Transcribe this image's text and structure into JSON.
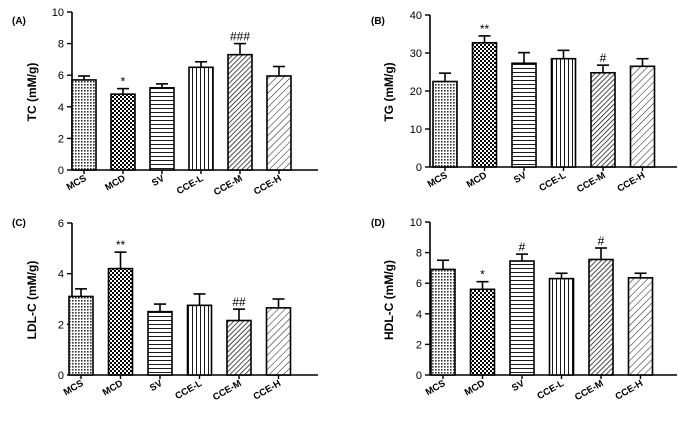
{
  "chart_data": [
    {
      "type": "bar",
      "panel": "(A)",
      "ylabel": "TC (mM/g)",
      "ylim": [
        0,
        10
      ],
      "yticks": [
        0,
        2,
        4,
        6,
        8,
        10
      ],
      "categories": [
        "MCS",
        "MCD",
        "SV",
        "CCE-L",
        "CCE-M",
        "CCE-H"
      ],
      "values": [
        5.7,
        4.8,
        5.2,
        6.5,
        7.3,
        5.95
      ],
      "errors": [
        0.25,
        0.35,
        0.25,
        0.35,
        0.7,
        0.6
      ],
      "significance": [
        "",
        "*",
        "",
        "",
        "###",
        ""
      ]
    },
    {
      "type": "bar",
      "panel": "(B)",
      "ylabel": "TG (mM/g)",
      "ylim": [
        0,
        40
      ],
      "yticks": [
        0,
        10,
        20,
        30,
        40
      ],
      "categories": [
        "MCS",
        "MCD",
        "SV",
        "CCE-L",
        "CCE-M",
        "CCE-H"
      ],
      "values": [
        22.5,
        32.7,
        27.3,
        28.5,
        24.8,
        26.5
      ],
      "errors": [
        2.2,
        1.8,
        2.8,
        2.2,
        2.0,
        2.0
      ],
      "significance": [
        "",
        "**",
        "",
        "",
        "#",
        ""
      ]
    },
    {
      "type": "bar",
      "panel": "(C)",
      "ylabel": "LDL-C (mM/g)",
      "ylim": [
        0,
        6
      ],
      "yticks": [
        0,
        2,
        4,
        6
      ],
      "categories": [
        "MCS",
        "MCD",
        "SV",
        "CCE-L",
        "CCE-M",
        "CCE-H"
      ],
      "values": [
        3.1,
        4.2,
        2.5,
        2.75,
        2.15,
        2.65
      ],
      "errors": [
        0.3,
        0.65,
        0.3,
        0.45,
        0.45,
        0.35
      ],
      "significance": [
        "",
        "**",
        "",
        "",
        "##",
        ""
      ]
    },
    {
      "type": "bar",
      "panel": "(D)",
      "ylabel": "HDL-C (mM/g)",
      "ylim": [
        0,
        10
      ],
      "yticks": [
        0,
        2,
        4,
        6,
        8,
        10
      ],
      "categories": [
        "MCS",
        "MCD",
        "SV",
        "CCE-L",
        "CCE-M",
        "CCE-H"
      ],
      "values": [
        6.9,
        5.6,
        7.45,
        6.3,
        7.55,
        6.35
      ],
      "errors": [
        0.6,
        0.5,
        0.45,
        0.35,
        0.75,
        0.3
      ],
      "significance": [
        "",
        "*",
        "#",
        "",
        "#",
        ""
      ]
    }
  ]
}
